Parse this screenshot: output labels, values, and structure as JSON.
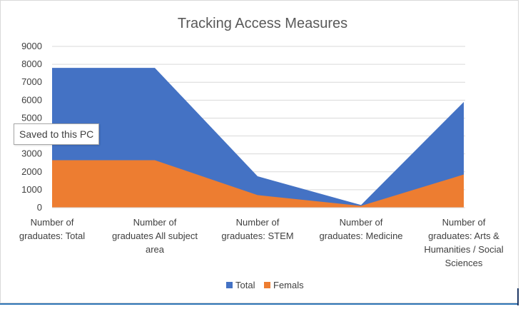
{
  "tooltip": {
    "text": "Saved to this PC"
  },
  "chart_data": {
    "type": "area",
    "title": "Tracking Access Measures",
    "categories": [
      [
        "Number of",
        "graduates: Total"
      ],
      [
        "Number of",
        "graduates All subject",
        "area"
      ],
      [
        "Number of",
        "graduates: STEM"
      ],
      [
        "Number of",
        "graduates: Medicine"
      ],
      [
        "Number of",
        "graduates: Arts &",
        "Humanities / Social",
        "Sciences"
      ]
    ],
    "yticks": [
      "0",
      "1000",
      "2000",
      "3000",
      "4000",
      "5000",
      "6000",
      "7000",
      "8000",
      "9000"
    ],
    "ylim": [
      0,
      9000
    ],
    "grid": true,
    "legend_position": "bottom",
    "series": [
      {
        "name": "Total",
        "color": "#4472c4",
        "values": [
          7800,
          7800,
          1750,
          150,
          5900
        ]
      },
      {
        "name": "Femals",
        "color": "#ed7d31",
        "values": [
          2650,
          2650,
          700,
          100,
          1850
        ]
      }
    ]
  }
}
